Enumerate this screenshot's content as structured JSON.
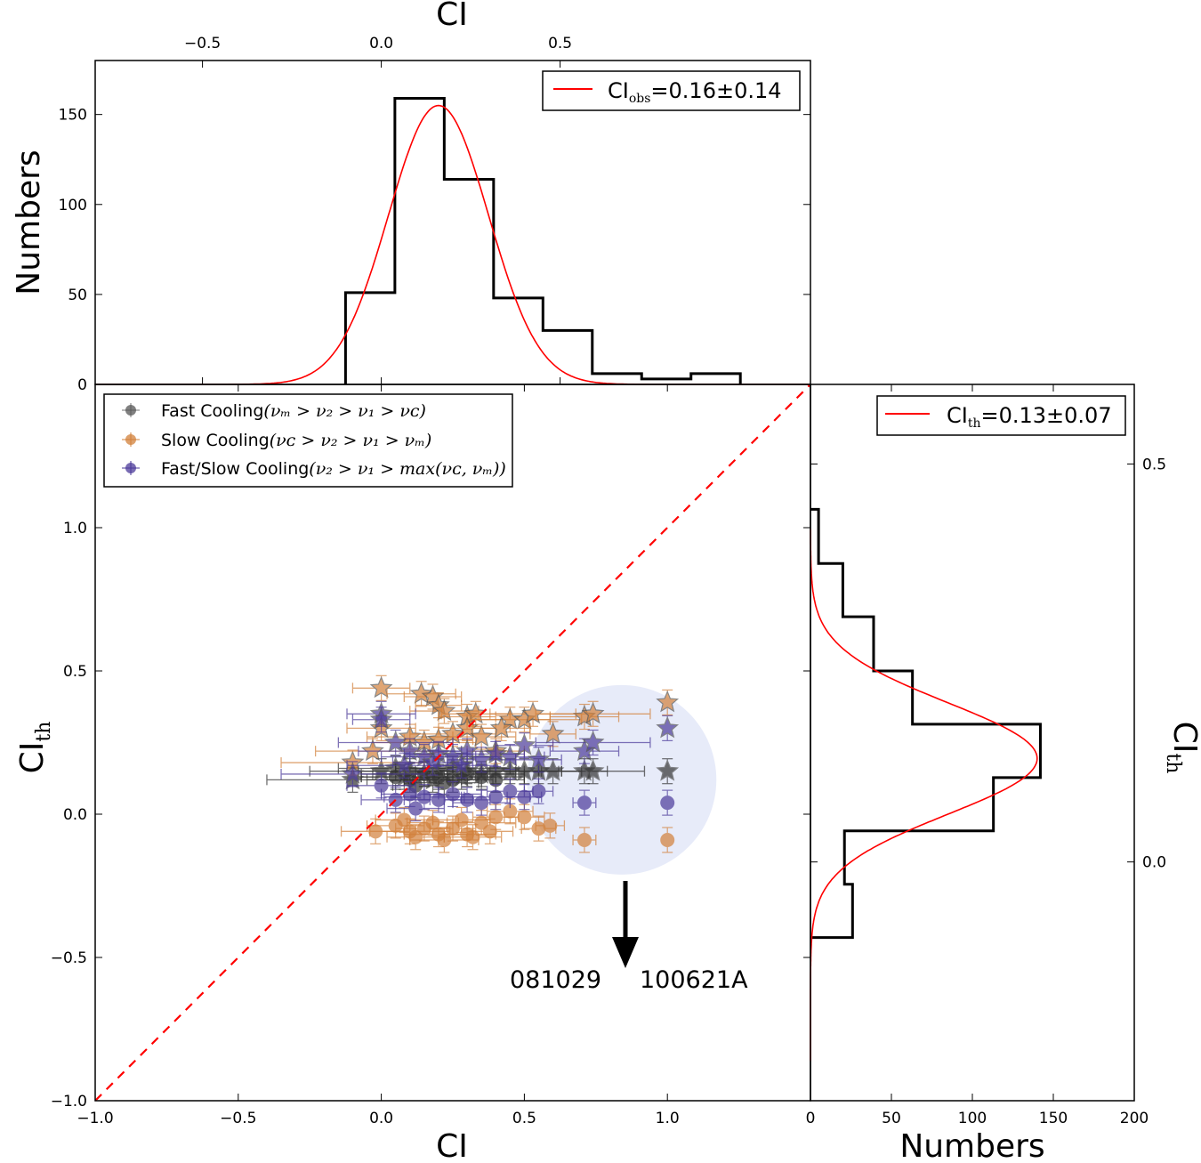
{
  "chart_data": [
    {
      "id": "top-histogram",
      "type": "bar",
      "style": "step-histogram",
      "xlabel": "CI",
      "ylabel": "Numbers",
      "xlim": [
        -0.8,
        1.2
      ],
      "ylim": [
        0,
        180
      ],
      "xticks": [
        -0.5,
        0.0,
        0.5
      ],
      "xtick_labels": [
        "−0.5",
        "0.0",
        "0.5"
      ],
      "yticks": [
        0,
        50,
        100,
        150
      ],
      "ytick_labels": [
        "0",
        "50",
        "100",
        "150"
      ],
      "bin_edges": [
        -0.1,
        0.038,
        0.176,
        0.314,
        0.452,
        0.59,
        0.728,
        0.866,
        1.004
      ],
      "counts": [
        51,
        159,
        114,
        48,
        30,
        6,
        3,
        6
      ],
      "fit": {
        "type": "gaussian",
        "mean": 0.16,
        "sigma": 0.14,
        "peak": 155,
        "color": "#ff0000"
      },
      "legend": {
        "label_main": "CI",
        "label_sub": "obs",
        "label_rest": "=0.16±0.14",
        "position": "top-right"
      }
    },
    {
      "id": "main-scatter",
      "type": "scatter",
      "xlabel": "CI",
      "ylabel_main": "CI",
      "ylabel_sub": "th",
      "xlim": [
        -1.0,
        1.5
      ],
      "ylim": [
        -1.0,
        1.5
      ],
      "xticks": [
        -1.0,
        -0.5,
        0.0,
        0.5,
        1.0
      ],
      "xtick_labels": [
        "−1.0",
        "−0.5",
        "0.0",
        "0.5",
        "1.0"
      ],
      "yticks": [
        -1.0,
        -0.5,
        0.0,
        0.5,
        1.0
      ],
      "ytick_labels": [
        "−1.0",
        "−0.5",
        "0.0",
        "0.5",
        "1.0"
      ],
      "reference_line": {
        "type": "y=x",
        "style": "dashed",
        "color": "#ff0000"
      },
      "legend": {
        "position": "top-left",
        "entries": [
          {
            "name": "Fast Cooling",
            "math": "(νₘ > ν₂ > ν₁ > νᴄ)",
            "color": "#555555"
          },
          {
            "name": "Slow Cooling",
            "math": "(νᴄ > ν₂ > ν₁ > νₘ)",
            "color": "#d2803a"
          },
          {
            "name": "Fast/Slow Cooling",
            "math": "(ν₂ > ν₁ > max(νᴄ, νₘ))",
            "color": "#4b3a9a"
          }
        ]
      },
      "series": [
        {
          "name": "Fast Cooling",
          "color": "#333333",
          "marker": "circle",
          "points": [
            [
              0.05,
              0.13,
              0.12
            ],
            [
              0.1,
              0.12,
              0.15
            ],
            [
              0.15,
              0.14,
              0.18
            ],
            [
              0.2,
              0.13,
              0.1
            ],
            [
              0.25,
              0.12,
              0.14
            ],
            [
              0.3,
              0.14,
              0.2
            ],
            [
              0.12,
              0.1,
              0.08
            ],
            [
              0.22,
              0.11,
              0.12
            ],
            [
              0.35,
              0.13,
              0.15
            ],
            [
              0.4,
              0.12,
              0.1
            ]
          ]
        },
        {
          "name": "Fast Cooling (stars)",
          "color": "#333333",
          "marker": "star",
          "points": [
            [
              -0.1,
              0.12,
              0.3
            ],
            [
              0.0,
              0.15,
              0.25
            ],
            [
              0.05,
              0.16,
              0.2
            ],
            [
              0.1,
              0.15,
              0.18
            ],
            [
              0.15,
              0.14,
              0.22
            ],
            [
              0.2,
              0.15,
              0.15
            ],
            [
              0.25,
              0.16,
              0.2
            ],
            [
              0.3,
              0.15,
              0.18
            ],
            [
              0.35,
              0.14,
              0.12
            ],
            [
              0.4,
              0.15,
              0.15
            ],
            [
              0.45,
              0.15,
              0.1
            ],
            [
              0.5,
              0.15,
              0.12
            ],
            [
              0.55,
              0.15,
              0.08
            ],
            [
              0.6,
              0.15,
              0.1
            ],
            [
              0.71,
              0.15,
              0.08
            ],
            [
              0.74,
              0.15,
              0.18
            ],
            [
              1.0,
              0.15,
              0.0
            ],
            [
              0.08,
              0.13,
              0.15
            ],
            [
              0.18,
              0.12,
              0.1
            ],
            [
              0.28,
              0.13,
              0.12
            ]
          ]
        },
        {
          "name": "Slow Cooling",
          "color": "#d2803a",
          "marker": "circle",
          "points": [
            [
              -0.02,
              -0.06,
              0.12
            ],
            [
              0.05,
              -0.04,
              0.1
            ],
            [
              0.1,
              -0.06,
              0.14
            ],
            [
              0.15,
              -0.05,
              0.1
            ],
            [
              0.2,
              -0.07,
              0.12
            ],
            [
              0.25,
              -0.05,
              0.08
            ],
            [
              0.3,
              -0.07,
              0.1
            ],
            [
              0.35,
              -0.03,
              0.12
            ],
            [
              0.4,
              -0.01,
              0.08
            ],
            [
              0.08,
              -0.02,
              0.1
            ],
            [
              0.18,
              -0.03,
              0.09
            ],
            [
              0.28,
              -0.02,
              0.1
            ],
            [
              0.45,
              0.01,
              0.08
            ],
            [
              0.5,
              -0.01,
              0.07
            ],
            [
              0.55,
              -0.05,
              0.06
            ],
            [
              0.59,
              -0.04,
              0.05
            ],
            [
              0.71,
              -0.09,
              0.04
            ],
            [
              1.0,
              -0.09,
              0.0
            ],
            [
              0.12,
              -0.08,
              0.1
            ],
            [
              0.22,
              -0.09,
              0.12
            ],
            [
              0.32,
              -0.08,
              0.1
            ],
            [
              0.38,
              -0.06,
              0.08
            ]
          ]
        },
        {
          "name": "Slow Cooling (stars)",
          "color": "#d2803a",
          "marker": "star",
          "points": [
            [
              0.0,
              0.44,
              0.1
            ],
            [
              0.14,
              0.42,
              0.12
            ],
            [
              0.18,
              0.41,
              0.1
            ],
            [
              0.2,
              0.38,
              0.08
            ],
            [
              0.22,
              0.36,
              0.12
            ],
            [
              0.3,
              0.34,
              0.1
            ],
            [
              0.33,
              0.35,
              0.12
            ],
            [
              0.45,
              0.33,
              0.14
            ],
            [
              0.5,
              0.33,
              0.2
            ],
            [
              0.53,
              0.35,
              0.15
            ],
            [
              0.71,
              0.34,
              0.12
            ],
            [
              0.74,
              0.35,
              0.2
            ],
            [
              1.0,
              0.39,
              0.0
            ],
            [
              0.1,
              0.27,
              0.15
            ],
            [
              0.15,
              0.25,
              0.18
            ],
            [
              0.2,
              0.26,
              0.12
            ],
            [
              0.25,
              0.28,
              0.15
            ],
            [
              0.3,
              0.3,
              0.1
            ],
            [
              0.35,
              0.27,
              0.12
            ],
            [
              0.4,
              0.22,
              0.1
            ],
            [
              -0.1,
              0.18,
              0.25
            ],
            [
              -0.03,
              0.22,
              0.2
            ],
            [
              0.6,
              0.28,
              0.08
            ],
            [
              0.0,
              0.3,
              0.12
            ],
            [
              0.42,
              0.3,
              0.1
            ]
          ]
        },
        {
          "name": "Fast/Slow Cooling",
          "color": "#4b3a9a",
          "marker": "circle",
          "points": [
            [
              0.05,
              0.05,
              0.12
            ],
            [
              0.1,
              0.07,
              0.1
            ],
            [
              0.15,
              0.06,
              0.14
            ],
            [
              0.2,
              0.05,
              0.12
            ],
            [
              0.25,
              0.07,
              0.1
            ],
            [
              0.3,
              0.05,
              0.08
            ],
            [
              0.35,
              0.04,
              0.1
            ],
            [
              0.4,
              0.06,
              0.12
            ],
            [
              0.45,
              0.08,
              0.08
            ],
            [
              0.5,
              0.06,
              0.06
            ],
            [
              0.55,
              0.08,
              0.05
            ],
            [
              0.71,
              0.04,
              0.04
            ],
            [
              1.0,
              0.04,
              0.0
            ],
            [
              0.0,
              0.1,
              0.12
            ],
            [
              0.12,
              0.02,
              0.1
            ]
          ]
        },
        {
          "name": "Fast/Slow Cooling (stars)",
          "color": "#4b3a9a",
          "marker": "star",
          "points": [
            [
              0.0,
              0.35,
              0.12
            ],
            [
              0.0,
              0.33,
              0.1
            ],
            [
              0.05,
              0.25,
              0.2
            ],
            [
              0.1,
              0.22,
              0.18
            ],
            [
              0.15,
              0.2,
              0.15
            ],
            [
              0.2,
              0.21,
              0.12
            ],
            [
              0.25,
              0.2,
              0.15
            ],
            [
              0.3,
              0.22,
              0.1
            ],
            [
              0.35,
              0.19,
              0.12
            ],
            [
              0.4,
              0.21,
              0.1
            ],
            [
              0.45,
              0.2,
              0.12
            ],
            [
              0.5,
              0.24,
              0.1
            ],
            [
              0.55,
              0.19,
              0.08
            ],
            [
              0.71,
              0.22,
              0.12
            ],
            [
              0.74,
              0.25,
              0.2
            ],
            [
              1.0,
              0.3,
              0.0
            ],
            [
              -0.1,
              0.14,
              0.25
            ],
            [
              0.08,
              0.17,
              0.2
            ],
            [
              0.18,
              0.18,
              0.14
            ],
            [
              0.28,
              0.17,
              0.12
            ]
          ]
        }
      ],
      "highlight": {
        "type": "circle",
        "center": [
          0.84,
          0.12
        ],
        "radius_data": 0.36,
        "color": "#dfe4f7"
      },
      "annotations": [
        {
          "text": "081029",
          "points_to": [
            0.84,
            -0.22
          ]
        },
        {
          "text": "100621A",
          "points_to": [
            0.84,
            -0.22
          ]
        }
      ]
    },
    {
      "id": "right-histogram",
      "type": "bar",
      "style": "horizontal-step-histogram",
      "xlabel": "Numbers",
      "ylabel_main": "CI",
      "ylabel_sub": "th",
      "xlim": [
        0,
        200
      ],
      "ylim": [
        -0.3,
        0.6
      ],
      "xticks": [
        0,
        50,
        100,
        150,
        200
      ],
      "xtick_labels": [
        "0",
        "50",
        "100",
        "150",
        "200"
      ],
      "yticks": [
        0.0,
        0.5
      ],
      "ytick_labels": [
        "0.0",
        "0.5"
      ],
      "bin_edges": [
        -0.095,
        -0.028,
        0.039,
        0.106,
        0.173,
        0.24,
        0.308,
        0.375,
        0.443
      ],
      "counts": [
        26,
        21,
        113,
        142,
        63,
        39,
        20,
        5
      ],
      "fit": {
        "type": "gaussian",
        "mean": 0.13,
        "sigma": 0.07,
        "peak": 140,
        "color": "#ff0000"
      },
      "legend": {
        "label_main": "CI",
        "label_sub": "th",
        "label_rest": "=0.13±0.07",
        "position": "top-right"
      }
    }
  ]
}
